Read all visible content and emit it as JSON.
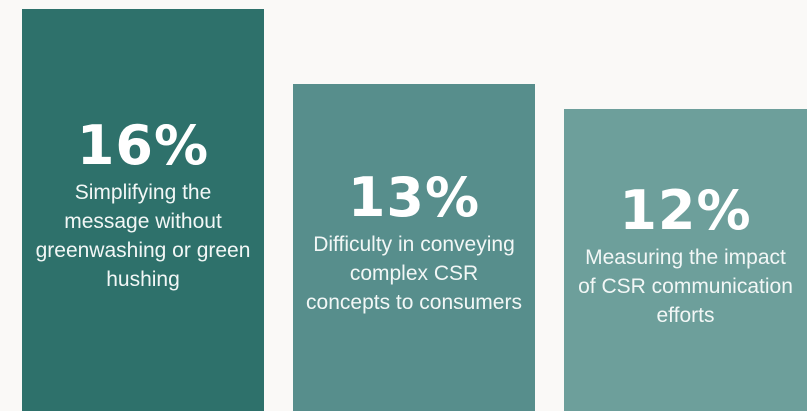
{
  "chart_data": {
    "type": "bar",
    "categories": [
      "Simplifying the message without greenwashing or green hushing",
      "Difficulty in conveying complex CSR concepts to consumers",
      "Measuring the impact of CSR communication efforts"
    ],
    "values": [
      16,
      13,
      12
    ],
    "value_labels": [
      "16%",
      "13%",
      "12%"
    ],
    "colors": [
      "#2e716b",
      "#578e8c",
      "#6d9f9b"
    ],
    "title": "",
    "xlabel": "",
    "ylabel": "",
    "ylim": [
      0,
      16
    ]
  }
}
